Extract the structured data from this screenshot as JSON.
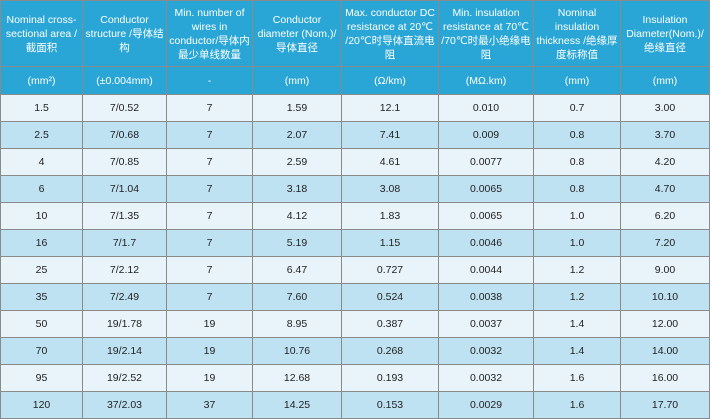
{
  "headers": [
    "Nominal cross-sectional area /截面积",
    "Conductor structure /导体结构",
    "Min. number of wires in conductor/导体内最少单线数量",
    "Conductor diameter (Nom.)/导体直径",
    "Max. conductor DC resistance at 20℃ /20℃时导体直流电阻",
    "Min. insulation resistance at 70℃ /70℃时最小绝缘电阻",
    "Nominal insulation thickness /绝缘厚度标称值",
    "Insulation Diameter(Nom.)/绝缘直径"
  ],
  "units": [
    "(mm²)",
    "(±0.004mm)",
    "-",
    "(mm)",
    "(Ω/km)",
    "(MΩ.km)",
    "(mm)",
    "(mm)"
  ],
  "rows": [
    [
      "1.5",
      "7/0.52",
      "7",
      "1.59",
      "12.1",
      "0.010",
      "0.7",
      "3.00"
    ],
    [
      "2.5",
      "7/0.68",
      "7",
      "2.07",
      "7.41",
      "0.009",
      "0.8",
      "3.70"
    ],
    [
      "4",
      "7/0.85",
      "7",
      "2.59",
      "4.61",
      "0.0077",
      "0.8",
      "4.20"
    ],
    [
      "6",
      "7/1.04",
      "7",
      "3.18",
      "3.08",
      "0.0065",
      "0.8",
      "4.70"
    ],
    [
      "10",
      "7/1.35",
      "7",
      "4.12",
      "1.83",
      "0.0065",
      "1.0",
      "6.20"
    ],
    [
      "16",
      "7/1.7",
      "7",
      "5.19",
      "1.15",
      "0.0046",
      "1.0",
      "7.20"
    ],
    [
      "25",
      "7/2.12",
      "7",
      "6.47",
      "0.727",
      "0.0044",
      "1.2",
      "9.00"
    ],
    [
      "35",
      "7/2.49",
      "7",
      "7.60",
      "0.524",
      "0.0038",
      "1.2",
      "10.10"
    ],
    [
      "50",
      "19/1.78",
      "19",
      "8.95",
      "0.387",
      "0.0037",
      "1.4",
      "12.00"
    ],
    [
      "70",
      "19/2.14",
      "19",
      "10.76",
      "0.268",
      "0.0032",
      "1.4",
      "14.00"
    ],
    [
      "95",
      "19/2.52",
      "19",
      "12.68",
      "0.193",
      "0.0032",
      "1.6",
      "16.00"
    ],
    [
      "120",
      "37/2.03",
      "37",
      "14.25",
      "0.153",
      "0.0029",
      "1.6",
      "17.70"
    ]
  ],
  "colors": {
    "header_bg": "#2aa6d6",
    "row_light": "#e9f4fa",
    "row_dark": "#bfe2f3",
    "border": "#8a8a8a"
  }
}
